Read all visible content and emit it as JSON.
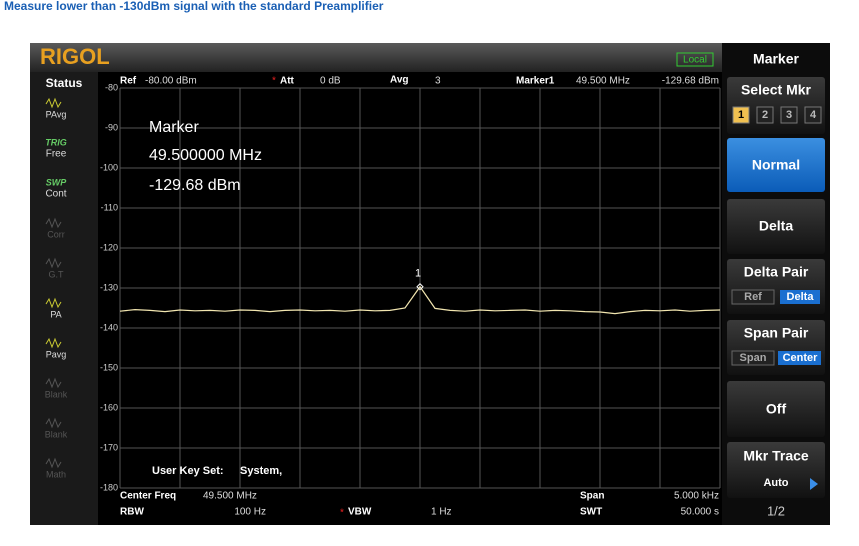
{
  "title": "Measure lower than -130dBm signal with the standard Preamplifier",
  "logo": "RIGOL",
  "mode": "Local",
  "status": {
    "heading": "Status",
    "items": [
      {
        "top": "PAvg"
      },
      {
        "top": "TRIG",
        "bottom": "Free"
      },
      {
        "top": "SWP",
        "bottom": "Cont"
      },
      {
        "top": "Corr"
      },
      {
        "top": "G.T"
      },
      {
        "top": "PA"
      },
      {
        "top": "Pavg"
      },
      {
        "top": "Blank"
      },
      {
        "top": "Blank"
      },
      {
        "top": "Math"
      }
    ]
  },
  "header": {
    "ref_label": "Ref",
    "ref_value": "-80.00 dBm",
    "att_label": "Att",
    "att_value": "0 dB",
    "avg_label": "Avg",
    "avg_value": "3",
    "marker_label": "Marker1",
    "marker_freq": "49.500 MHz",
    "marker_level": "-129.68 dBm"
  },
  "readout": {
    "title": "Marker",
    "freq": "49.500000 MHz",
    "level": "-129.68 dBm"
  },
  "user_key": {
    "label": "User Key Set:",
    "value": "System,"
  },
  "footer": {
    "center_label": "Center Freq",
    "center_value": "49.500 MHz",
    "rbw_label": "RBW",
    "rbw_value": "100 Hz",
    "vbw_label": "VBW",
    "vbw_value": "1 Hz",
    "span_label": "Span",
    "span_value": "5.000 kHz",
    "swt_label": "SWT",
    "swt_value": "50.000 s"
  },
  "softkeys": {
    "menu": "Marker",
    "select": "Select Mkr",
    "markers": [
      "1",
      "2",
      "3",
      "4"
    ],
    "normal": "Normal",
    "delta": "Delta",
    "delta_pair": "Delta Pair",
    "delta_pair_options": [
      "Ref",
      "Delta"
    ],
    "span_pair": "Span Pair",
    "span_pair_options": [
      "Span",
      "Center"
    ],
    "off": "Off",
    "mkr_trace": "Mkr Trace",
    "mkr_trace_value": "Auto",
    "page": "1/2"
  },
  "chart_data": {
    "type": "line",
    "peak_label": "1",
    "x": [
      49.4975,
      49.497625,
      49.49775,
      49.497875,
      49.498,
      49.498125,
      49.49825,
      49.498375,
      49.4985,
      49.498625,
      49.49875,
      49.498875,
      49.499,
      49.499125,
      49.49925,
      49.499375,
      49.4995,
      49.499625,
      49.49975,
      49.499875,
      49.5,
      49.500125,
      49.50025,
      49.500375,
      49.5005,
      49.500625,
      49.50075,
      49.500875,
      49.501,
      49.501125,
      49.50125,
      49.501375,
      49.5015,
      49.501625,
      49.50175,
      49.501875,
      49.502,
      49.502125,
      49.50225,
      49.502375,
      49.5025
    ],
    "series": [
      {
        "color": "#f2e6b0",
        "values": [
          -135.8,
          -135.4,
          -135.6,
          -135.9,
          -135.5,
          -135.7,
          -135.6,
          -135.8,
          -135.5,
          -135.6,
          -135.9,
          -135.6,
          -135.5,
          -135.7,
          -135.6,
          -135.8,
          -135.5,
          -135.7,
          -135.6,
          -135.0,
          -129.68,
          -135.1,
          -135.6,
          -135.8,
          -135.5,
          -135.7,
          -135.6,
          -135.5,
          -135.8,
          -135.6,
          -135.7,
          -135.9,
          -136.0,
          -136.4,
          -135.9,
          -135.6,
          -135.7,
          -135.5,
          -135.8,
          -135.6,
          -135.5
        ]
      }
    ],
    "xlim": [
      49.4975,
      49.5025
    ],
    "ylim": [
      -180,
      -80
    ],
    "yticks": [
      -80,
      -90,
      -100,
      -110,
      -120,
      -130,
      -140,
      -150,
      -160,
      -170,
      -180
    ],
    "grid": true
  }
}
